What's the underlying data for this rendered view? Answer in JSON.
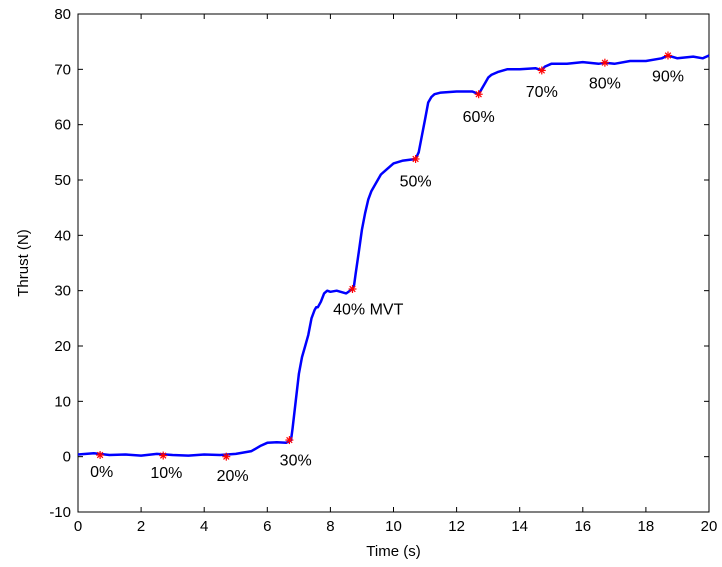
{
  "chart_data": {
    "type": "line",
    "title": "",
    "xlabel": "Time (s)",
    "ylabel": "Thrust (N)",
    "xlim": [
      0,
      20
    ],
    "ylim": [
      -10,
      80
    ],
    "xticks": [
      0,
      2,
      4,
      6,
      8,
      10,
      12,
      14,
      16,
      18,
      20
    ],
    "yticks": [
      -10,
      0,
      10,
      20,
      30,
      40,
      50,
      60,
      70,
      80
    ],
    "grid": false,
    "legend": "none",
    "line_color": "#0000ff",
    "marker_color": "#ff0000",
    "series": [
      {
        "x": [
          0,
          0.5,
          1,
          1.5,
          2,
          2.5,
          3,
          3.5,
          4,
          4.5,
          5,
          5.5,
          5.8,
          6,
          6.3,
          6.6,
          6.75,
          6.8,
          6.9,
          7.0,
          7.1,
          7.2,
          7.3,
          7.4,
          7.5,
          7.55,
          7.6,
          7.7,
          7.8,
          7.9,
          8.0,
          8.2,
          8.5,
          8.7,
          8.75,
          8.8,
          8.9,
          9.0,
          9.1,
          9.2,
          9.3,
          9.4,
          9.6,
          9.8,
          10.0,
          10.3,
          10.7,
          10.8,
          10.9,
          11.0,
          11.1,
          11.2,
          11.3,
          11.5,
          12.0,
          12.5,
          12.7,
          12.8,
          12.9,
          13.0,
          13.1,
          13.3,
          13.6,
          14.0,
          14.5,
          14.7,
          14.8,
          15.0,
          15.5,
          16.0,
          16.5,
          16.7,
          17.0,
          17.5,
          18.0,
          18.5,
          18.7,
          19.0,
          19.5,
          19.8,
          20.0
        ],
        "y": [
          0.4,
          0.6,
          0.3,
          0.4,
          0.2,
          0.5,
          0.3,
          0.2,
          0.4,
          0.3,
          0.5,
          1.0,
          2.0,
          2.5,
          2.6,
          2.5,
          3.0,
          5.0,
          10.0,
          15.0,
          18.0,
          20.0,
          22.0,
          25.0,
          26.5,
          27.0,
          27.0,
          28.0,
          29.5,
          30.0,
          29.8,
          30.0,
          29.5,
          30.3,
          31.0,
          33.0,
          37.0,
          41.0,
          44.0,
          46.5,
          48.0,
          49.0,
          51.0,
          52.0,
          53.0,
          53.5,
          53.8,
          55.0,
          58.0,
          61.0,
          64.0,
          65.0,
          65.5,
          65.8,
          66.0,
          66.0,
          65.5,
          66.5,
          67.5,
          68.5,
          69.0,
          69.5,
          70.0,
          70.0,
          70.2,
          69.8,
          70.5,
          71.0,
          71.0,
          71.3,
          71.0,
          71.2,
          71.0,
          71.5,
          71.5,
          72.0,
          72.5,
          72.0,
          72.3,
          72.0,
          72.5
        ]
      }
    ],
    "markers": [
      {
        "x": 0.7,
        "y": 0.3
      },
      {
        "x": 2.7,
        "y": 0.2
      },
      {
        "x": 4.7,
        "y": 0.0
      },
      {
        "x": 6.7,
        "y": 3.0
      },
      {
        "x": 8.7,
        "y": 30.3
      },
      {
        "x": 10.7,
        "y": 53.8
      },
      {
        "x": 12.7,
        "y": 65.5
      },
      {
        "x": 14.7,
        "y": 69.8
      },
      {
        "x": 16.7,
        "y": 71.2
      },
      {
        "x": 18.7,
        "y": 72.5
      }
    ],
    "annotations": [
      {
        "text": "0%",
        "x": 0.75,
        "y": -2.6
      },
      {
        "text": "10%",
        "x": 2.8,
        "y": -2.8
      },
      {
        "text": "20%",
        "x": 4.9,
        "y": -3.3
      },
      {
        "text": "30%",
        "x": 6.9,
        "y": -0.5
      },
      {
        "text": "40% MVT",
        "x": 9.2,
        "y": 26.8
      },
      {
        "text": "50%",
        "x": 10.7,
        "y": 49.9
      },
      {
        "text": "60%",
        "x": 12.7,
        "y": 61.6
      },
      {
        "text": "70%",
        "x": 14.7,
        "y": 66.1
      },
      {
        "text": "80%",
        "x": 16.7,
        "y": 67.6
      },
      {
        "text": "90%",
        "x": 18.7,
        "y": 68.9
      }
    ]
  }
}
